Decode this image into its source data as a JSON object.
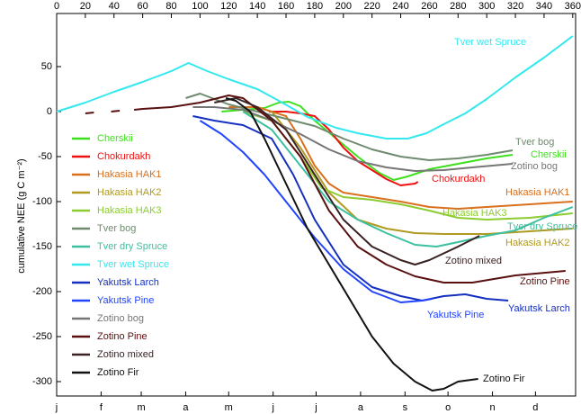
{
  "chart_data": {
    "type": "line",
    "y_label": "cumulative NEE (g C m⁻²)",
    "xlim": [
      0,
      362
    ],
    "ylim": [
      -316,
      109
    ],
    "xticks": [
      0,
      20,
      40,
      60,
      80,
      100,
      120,
      140,
      160,
      180,
      200,
      220,
      240,
      260,
      280,
      300,
      320,
      340,
      360
    ],
    "x2ticks": [
      {
        "value": 0,
        "label": "j"
      },
      {
        "value": 31,
        "label": "f"
      },
      {
        "value": 59,
        "label": "m"
      },
      {
        "value": 90,
        "label": "a"
      },
      {
        "value": 120,
        "label": "m"
      },
      {
        "value": 151,
        "label": "j"
      },
      {
        "value": 181,
        "label": "j"
      },
      {
        "value": 212,
        "label": "a"
      },
      {
        "value": 243,
        "label": "s"
      },
      {
        "value": 273,
        "label": "o"
      },
      {
        "value": 304,
        "label": "n"
      },
      {
        "value": 334,
        "label": "d"
      }
    ],
    "yticks": [
      -300,
      -250,
      -200,
      -150,
      -100,
      -50,
      0,
      50
    ],
    "legend": "left",
    "series": [
      {
        "name": "Cherskii",
        "color": "#3ee01e",
        "x": [
          115,
          130,
          145,
          155,
          162,
          170,
          180,
          195,
          210,
          225,
          235,
          245,
          260,
          280,
          300,
          318
        ],
        "values": [
          0,
          2,
          4,
          10,
          11,
          6,
          -10,
          -30,
          -50,
          -68,
          -76,
          -72,
          -64,
          -58,
          -52,
          -48
        ]
      },
      {
        "name": "Chokurdakh",
        "color": "#ee1111",
        "x": [
          148,
          160,
          170,
          180,
          190,
          200,
          210,
          220,
          230,
          240,
          250,
          252
        ],
        "values": [
          0,
          0,
          -2,
          -5,
          -20,
          -40,
          -55,
          -65,
          -75,
          -82,
          -80,
          -78
        ]
      },
      {
        "name": "Hakasia HAK1",
        "color": "#d8701e",
        "x": [
          120,
          140,
          160,
          170,
          180,
          190,
          200,
          220,
          240,
          260,
          280,
          300,
          330,
          360
        ],
        "values": [
          5,
          5,
          -5,
          -30,
          -60,
          -80,
          -90,
          -95,
          -100,
          -106,
          -108,
          -106,
          -103,
          -100
        ]
      },
      {
        "name": "Hakasia HAK2",
        "color": "#b09a22",
        "x": [
          150,
          170,
          190,
          210,
          230,
          250,
          270,
          300,
          330,
          360
        ],
        "values": [
          0,
          -40,
          -90,
          -120,
          -130,
          -135,
          -136,
          -136,
          -133,
          -130
        ]
      },
      {
        "name": "Hakasia HAK3",
        "color": "#8ccc30",
        "x": [
          130,
          150,
          170,
          185,
          200,
          220,
          240,
          260,
          280,
          300,
          330,
          360
        ],
        "values": [
          0,
          -10,
          -50,
          -85,
          -95,
          -98,
          -103,
          -110,
          -118,
          -120,
          -118,
          -113
        ]
      },
      {
        "name": "Tver bog",
        "color": "#6f8a6f",
        "x": [
          90,
          100,
          120,
          140,
          160,
          180,
          200,
          220,
          240,
          260,
          280,
          300,
          318
        ],
        "values": [
          15,
          20,
          8,
          0,
          -8,
          -16,
          -30,
          -42,
          -50,
          -54,
          -52,
          -48,
          -43
        ]
      },
      {
        "name": "Tver dry Spruce",
        "color": "#3cc0a0",
        "x": [
          130,
          150,
          170,
          190,
          210,
          230,
          250,
          265,
          280,
          300,
          320,
          340,
          360
        ],
        "values": [
          0,
          -20,
          -60,
          -100,
          -120,
          -135,
          -148,
          -150,
          -145,
          -138,
          -132,
          -118,
          -106
        ]
      },
      {
        "name": "Tver wet Spruce",
        "color": "#33e8ee",
        "x": [
          0,
          20,
          40,
          60,
          80,
          92,
          105,
          120,
          140,
          155,
          175,
          195,
          210,
          230,
          245,
          258,
          270,
          285,
          300,
          320,
          340,
          360
        ],
        "values": [
          0,
          10,
          22,
          33,
          45,
          54,
          45,
          36,
          25,
          12,
          -6,
          -18,
          -24,
          -30,
          -30,
          -24,
          -14,
          -2,
          14,
          38,
          60,
          84
        ]
      },
      {
        "name": "Yakutsk Larch",
        "color": "#1530c0",
        "x": [
          95,
          110,
          130,
          150,
          165,
          180,
          200,
          220,
          240,
          255,
          270,
          285,
          300,
          315
        ],
        "values": [
          -5,
          -10,
          -15,
          -30,
          -70,
          -120,
          -170,
          -195,
          -205,
          -210,
          -205,
          -203,
          -208,
          -210
        ]
      },
      {
        "name": "Yakutsk Pine",
        "color": "#2244ff",
        "x": [
          100,
          115,
          130,
          145,
          160,
          180,
          200,
          220,
          240,
          255,
          262
        ],
        "values": [
          -10,
          -25,
          -45,
          -70,
          -100,
          -140,
          -175,
          -200,
          -212,
          -210,
          -208
        ]
      },
      {
        "name": "Zotino bog",
        "color": "#767676",
        "x": [
          95,
          110,
          130,
          150,
          170,
          190,
          210,
          230,
          250,
          270,
          290,
          318
        ],
        "values": [
          5,
          5,
          2,
          -10,
          -25,
          -42,
          -55,
          -62,
          -66,
          -65,
          -62,
          -58
        ]
      },
      {
        "name": "Zotino Pine",
        "color": "#5a1010",
        "x": [
          20,
          26,
          33,
          38,
          44,
          50,
          54,
          60,
          80,
          100,
          120,
          130,
          150,
          170,
          190,
          210,
          230,
          250,
          270,
          290,
          320,
          355
        ],
        "values": [
          -2,
          -1,
          null,
          0,
          1,
          null,
          2,
          3,
          5,
          10,
          18,
          15,
          -10,
          -50,
          -110,
          -150,
          -170,
          -183,
          -190,
          -190,
          -182,
          -177
        ]
      },
      {
        "name": "Zotino mixed",
        "color": "#3a2222",
        "x": [
          110,
          125,
          140,
          160,
          180,
          200,
          220,
          240,
          250,
          260,
          280,
          295
        ],
        "values": [
          10,
          15,
          5,
          -20,
          -70,
          -120,
          -150,
          -165,
          -170,
          -165,
          -150,
          -138
        ]
      },
      {
        "name": "Zotino Fir",
        "color": "#111111",
        "x": [
          118,
          125,
          135,
          145,
          160,
          175,
          190,
          205,
          220,
          235,
          250,
          262,
          270,
          280,
          294
        ],
        "values": [
          15,
          12,
          0,
          -30,
          -80,
          -130,
          -170,
          -210,
          -250,
          -280,
          -300,
          -310,
          -308,
          -300,
          -297
        ]
      }
    ]
  }
}
